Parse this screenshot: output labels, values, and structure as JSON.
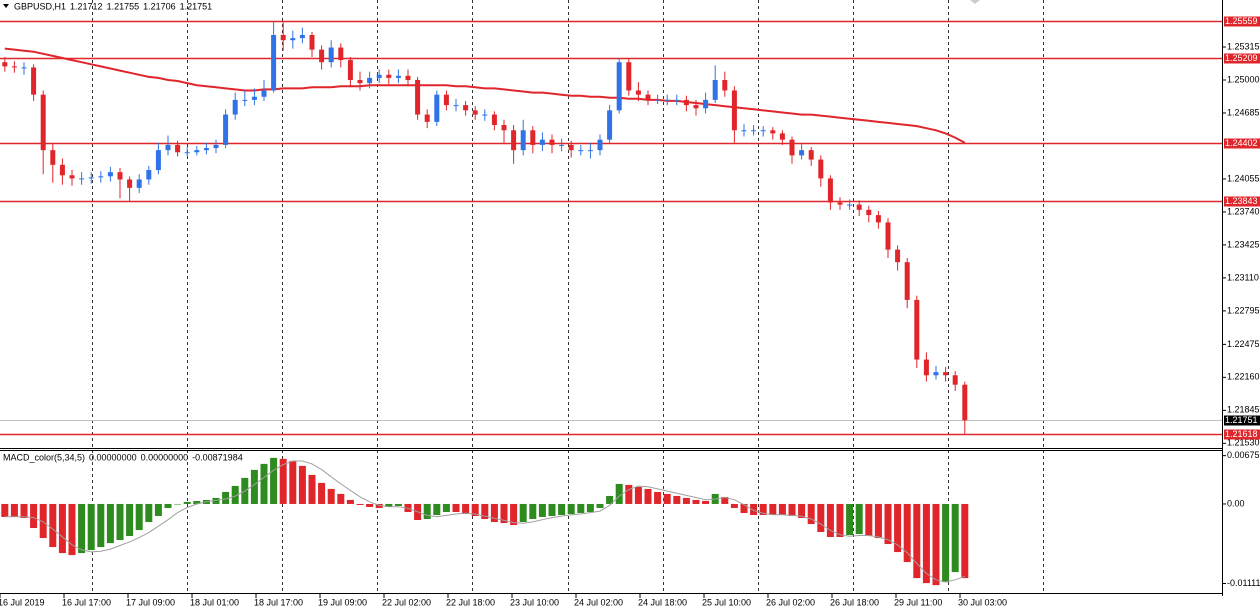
{
  "chart_data": [
    {
      "type": "candlestick",
      "title": "GBPUSD,H1",
      "last_bar": {
        "open": 1.21712,
        "high": 1.21755,
        "low": 1.21706,
        "close": 1.21751
      },
      "up_color": "#2f73e6",
      "down_color": "#e0252b",
      "open": [
        1.2517,
        1.2513,
        1.2512,
        1.2512,
        1.2486,
        1.2433,
        1.2419,
        1.2409,
        1.2406,
        1.2406,
        1.2407,
        1.2408,
        1.2412,
        1.2405,
        1.2397,
        1.2405,
        1.2414,
        1.2433,
        1.2438,
        1.2431,
        1.2431,
        1.2433,
        1.2435,
        1.2438,
        1.2467,
        1.2481,
        1.2481,
        1.2484,
        1.249,
        1.2543,
        1.2538,
        1.254,
        1.2543,
        1.2529,
        1.2517,
        1.2531,
        1.2519,
        1.25,
        1.2497,
        1.2502,
        1.2505,
        1.2502,
        1.2504,
        1.25,
        1.2467,
        1.246,
        1.2486,
        1.2476,
        1.2476,
        1.2471,
        1.2467,
        1.2467,
        1.2457,
        1.2452,
        1.2433,
        1.2452,
        1.2438,
        1.2443,
        1.2438,
        1.2438,
        1.2433,
        1.2433,
        1.2433,
        1.2443,
        1.2471,
        1.2517,
        1.249,
        1.2486,
        1.2481,
        1.2481,
        1.2481,
        1.2481,
        1.2476,
        1.2473,
        1.2481,
        1.25,
        1.249,
        1.2452,
        1.2452,
        1.2452,
        1.2452,
        1.2449,
        1.2443,
        1.2428,
        1.2433,
        1.2424,
        1.2406,
        1.2383,
        1.2381,
        1.2381,
        1.2376,
        1.2371,
        1.2364,
        1.2338,
        1.2326,
        1.229,
        1.2233,
        1.2218,
        1.2221,
        1.2218,
        1.2209
      ],
      "high": [
        1.2522,
        1.2518,
        1.2517,
        1.2515,
        1.249,
        1.244,
        1.2425,
        1.2414,
        1.2412,
        1.2412,
        1.2413,
        1.2417,
        1.2416,
        1.2408,
        1.241,
        1.2418,
        1.244,
        1.2447,
        1.2442,
        1.2436,
        1.2437,
        1.244,
        1.2443,
        1.2472,
        1.2488,
        1.249,
        1.2492,
        1.25,
        1.2556,
        1.2555,
        1.2547,
        1.255,
        1.2546,
        1.2533,
        1.2538,
        1.2535,
        1.2522,
        1.2508,
        1.2508,
        1.251,
        1.251,
        1.251,
        1.251,
        1.2503,
        1.2472,
        1.249,
        1.249,
        1.2482,
        1.248,
        1.2475,
        1.2472,
        1.247,
        1.2462,
        1.2457,
        1.2462,
        1.2456,
        1.245,
        1.2448,
        1.2444,
        1.2442,
        1.2438,
        1.244,
        1.2448,
        1.2476,
        1.2521,
        1.252,
        1.2498,
        1.249,
        1.2486,
        1.2486,
        1.2486,
        1.2485,
        1.2481,
        1.2488,
        1.2514,
        1.2508,
        1.2494,
        1.2458,
        1.2457,
        1.2456,
        1.2455,
        1.2452,
        1.2446,
        1.244,
        1.2436,
        1.2428,
        1.2409,
        1.2388,
        1.2386,
        1.2385,
        1.238,
        1.2375,
        1.2368,
        1.2342,
        1.233,
        1.2294,
        1.224,
        1.2227,
        1.2226,
        1.2222,
        1.2212
      ],
      "low": [
        1.2508,
        1.2507,
        1.2505,
        1.248,
        1.241,
        1.2402,
        1.24,
        1.2399,
        1.24,
        1.2401,
        1.2402,
        1.2403,
        1.2387,
        1.2384,
        1.2392,
        1.24,
        1.241,
        1.2428,
        1.2427,
        1.2427,
        1.2428,
        1.2429,
        1.243,
        1.2435,
        1.2462,
        1.2475,
        1.2476,
        1.248,
        1.2488,
        1.2528,
        1.253,
        1.2535,
        1.2522,
        1.251,
        1.2512,
        1.2512,
        1.2493,
        1.249,
        1.2492,
        1.2497,
        1.2496,
        1.2497,
        1.2494,
        1.2462,
        1.2454,
        1.2456,
        1.2471,
        1.247,
        1.2466,
        1.2462,
        1.2461,
        1.2452,
        1.244,
        1.242,
        1.2428,
        1.243,
        1.2432,
        1.243,
        1.2432,
        1.2426,
        1.2428,
        1.2425,
        1.2428,
        1.244,
        1.2468,
        1.2485,
        1.248,
        1.2476,
        1.2477,
        1.2476,
        1.2476,
        1.247,
        1.2466,
        1.2468,
        1.2478,
        1.2484,
        1.244,
        1.2446,
        1.2447,
        1.2446,
        1.2443,
        1.2438,
        1.242,
        1.2424,
        1.2418,
        1.2398,
        1.2376,
        1.2376,
        1.2376,
        1.237,
        1.2364,
        1.2358,
        1.233,
        1.2318,
        1.2282,
        1.2225,
        1.2212,
        1.2214,
        1.2212,
        1.2203,
        1.2162
      ],
      "close": [
        1.2513,
        1.2512,
        1.2512,
        1.2486,
        1.2433,
        1.2419,
        1.2409,
        1.2406,
        1.2406,
        1.2407,
        1.2408,
        1.2412,
        1.2405,
        1.2397,
        1.2405,
        1.2414,
        1.2433,
        1.2438,
        1.2431,
        1.2431,
        1.2433,
        1.2435,
        1.2438,
        1.2467,
        1.2481,
        1.2481,
        1.2484,
        1.249,
        1.2543,
        1.2538,
        1.254,
        1.2543,
        1.2529,
        1.2517,
        1.2531,
        1.2519,
        1.25,
        1.2497,
        1.2502,
        1.2505,
        1.2502,
        1.2504,
        1.25,
        1.2467,
        1.246,
        1.2486,
        1.2476,
        1.2476,
        1.2471,
        1.2467,
        1.2467,
        1.2457,
        1.2452,
        1.2433,
        1.2452,
        1.2438,
        1.2443,
        1.2438,
        1.2438,
        1.2433,
        1.2433,
        1.2433,
        1.2443,
        1.2471,
        1.2517,
        1.249,
        1.2486,
        1.2481,
        1.2481,
        1.2481,
        1.2481,
        1.2476,
        1.2473,
        1.2481,
        1.25,
        1.249,
        1.2452,
        1.2452,
        1.2452,
        1.2452,
        1.2449,
        1.2443,
        1.2428,
        1.2433,
        1.2424,
        1.2406,
        1.2383,
        1.2381,
        1.2381,
        1.2376,
        1.2371,
        1.2364,
        1.2338,
        1.2326,
        1.229,
        1.2233,
        1.2218,
        1.2221,
        1.2218,
        1.2209,
        1.2175
      ],
      "moving_average": {
        "color": "#e0252b",
        "values": [
          1.253,
          1.2529,
          1.2528,
          1.2527,
          1.2525,
          1.2523,
          1.2521,
          1.2519,
          1.2517,
          1.2515,
          1.2513,
          1.2511,
          1.2509,
          1.2507,
          1.2505,
          1.2503,
          1.2502,
          1.25,
          1.2499,
          1.2497,
          1.2495,
          1.2494,
          1.2493,
          1.2492,
          1.2491,
          1.249,
          1.249,
          1.2491,
          1.2491,
          1.2492,
          1.2492,
          1.2492,
          1.2493,
          1.2493,
          1.2493,
          1.2494,
          1.2494,
          1.2494,
          1.2495,
          1.2495,
          1.2495,
          1.2495,
          1.2495,
          1.2495,
          1.2495,
          1.2495,
          1.2495,
          1.2494,
          1.2494,
          1.2493,
          1.2492,
          1.2492,
          1.2491,
          1.249,
          1.2489,
          1.2488,
          1.2488,
          1.2487,
          1.2486,
          1.2485,
          1.2485,
          1.2484,
          1.2484,
          1.2483,
          1.2483,
          1.2482,
          1.2482,
          1.2481,
          1.2481,
          1.248,
          1.248,
          1.2479,
          1.2478,
          1.2477,
          1.2476,
          1.2475,
          1.2474,
          1.2473,
          1.2472,
          1.2471,
          1.247,
          1.2469,
          1.2468,
          1.2467,
          1.2467,
          1.2466,
          1.2465,
          1.2464,
          1.2463,
          1.2462,
          1.2461,
          1.246,
          1.2459,
          1.2458,
          1.2457,
          1.2456,
          1.2454,
          1.2452,
          1.2449,
          1.2445,
          1.244
        ]
      },
      "levels": [
        1.25559,
        1.25209,
        1.24402,
        1.23843,
        1.21618
      ],
      "level_color": "#e0252b",
      "ylim": [
        1.21495,
        1.25764
      ],
      "yticks": [
        1.25315,
        {
          "value": 1.25,
          "label": "1.25000"
        },
        1.24685,
        1.24055,
        {
          "value": 1.2374,
          "label": "1.23740"
        },
        1.23425,
        {
          "value": 1.2311,
          "label": "1.23110"
        },
        1.22795,
        1.22475,
        {
          "value": 1.2216,
          "label": "1.22160"
        },
        1.21845,
        {
          "value": 1.2153,
          "label": "1.21530"
        }
      ],
      "xtick_labels": [
        "16 Jul 2019",
        "16 Jul 17:00",
        "17 Jul 09:00",
        "18 Jul 01:00",
        "18 Jul 17:00",
        "19 Jul 09:00",
        "22 Jul 02:00",
        "22 Jul 18:00",
        "23 Jul 10:00",
        "24 Jul 02:00",
        "24 Jul 18:00",
        "25 Jul 10:00",
        "26 Jul 02:00",
        "26 Jul 18:00",
        "29 Jul 11:00",
        "30 Jul 03:00"
      ]
    },
    {
      "type": "bar",
      "title": "MACD_color(5,34,5)",
      "indicator_values": [
        {
          "value": 0,
          "label": "0.00000000"
        },
        {
          "value": 0,
          "label": "0.00000000"
        },
        {
          "value": -0.00871984,
          "label": "-0.00871984"
        }
      ],
      "up_color": "#2e8b1f",
      "down_color": "#e0252b",
      "values": [
        -0.00182,
        -0.00182,
        -0.00196,
        -0.00336,
        -0.00476,
        -0.00602,
        -0.00686,
        -0.00714,
        -0.00686,
        -0.00644,
        -0.00602,
        -0.00546,
        -0.00504,
        -0.00448,
        -0.00364,
        -0.00252,
        -0.00168,
        -0.00056,
        0,
        0.00028,
        0.00042,
        0.00056,
        0.00084,
        0.00168,
        0.00252,
        0.00364,
        0.00476,
        0.0056,
        0.00644,
        0.0063,
        0.00602,
        0.00532,
        0.00406,
        0.00294,
        0.0021,
        0.0014,
        0.00056,
        -0.00014,
        -0.00042,
        -0.00056,
        -0.00042,
        -0.00028,
        -0.00112,
        -0.00224,
        -0.0021,
        -0.00154,
        -0.00112,
        -0.00112,
        -0.0014,
        -0.00168,
        -0.0021,
        -0.00252,
        -0.00266,
        -0.00294,
        -0.00252,
        -0.0021,
        -0.00182,
        -0.00168,
        -0.00154,
        -0.0014,
        -0.00126,
        -0.00112,
        -0.00056,
        0.00112,
        0.0028,
        0.00266,
        0.00238,
        0.0021,
        0.00168,
        0.0014,
        0.00112,
        0.00084,
        0.00056,
        0.00042,
        0.0014,
        0.00098,
        -0.00056,
        -0.00126,
        -0.00154,
        -0.00154,
        -0.00154,
        -0.00154,
        -0.00168,
        -0.00196,
        -0.0028,
        -0.00392,
        -0.00462,
        -0.00462,
        -0.00434,
        -0.0042,
        -0.00448,
        -0.00476,
        -0.0056,
        -0.00672,
        -0.00812,
        -0.01036,
        -0.01106,
        -0.01134,
        -0.01092,
        -0.00952,
        -0.01036
      ],
      "signal": {
        "color": "#a0a0a0",
        "values": [
          -0.0018,
          -0.0018,
          -0.0018,
          -0.0019,
          -0.0025,
          -0.0035,
          -0.0046,
          -0.0057,
          -0.0064,
          -0.0067,
          -0.0066,
          -0.0063,
          -0.0058,
          -0.0053,
          -0.0047,
          -0.004,
          -0.0031,
          -0.0022,
          -0.0012,
          -0.0005,
          0,
          0.0003,
          0.0005,
          0.0007,
          0.0011,
          0.0018,
          0.0027,
          0.0037,
          0.0047,
          0.0055,
          0.006,
          0.006,
          0.0056,
          0.0048,
          0.0038,
          0.0028,
          0.0019,
          0.001,
          0.0003,
          -0.0002,
          -0.0004,
          -0.0004,
          -0.0006,
          -0.0011,
          -0.0016,
          -0.0018,
          -0.0016,
          -0.0014,
          -0.0013,
          -0.0014,
          -0.0017,
          -0.002,
          -0.0023,
          -0.0026,
          -0.0027,
          -0.0025,
          -0.0022,
          -0.0019,
          -0.0017,
          -0.0015,
          -0.0014,
          -0.0012,
          -0.001,
          -0.0002,
          0.0011,
          0.002,
          0.0025,
          0.0024,
          0.0021,
          0.0018,
          0.0015,
          0.0012,
          0.0009,
          0.0006,
          0.0007,
          0.0009,
          0.0006,
          -0.0001,
          -0.0009,
          -0.0013,
          -0.0015,
          -0.0015,
          -0.0016,
          -0.0017,
          -0.0021,
          -0.0028,
          -0.0037,
          -0.0043,
          -0.0045,
          -0.0044,
          -0.0044,
          -0.0046,
          -0.005,
          -0.0057,
          -0.0068,
          -0.0083,
          -0.0097,
          -0.0106,
          -0.0109,
          -0.0106,
          -0.0101
        ]
      },
      "ylim": [
        -0.0123,
        0.0074
      ],
      "yticks": [
        0.00675,
        {
          "value": 0,
          "label": "0.00"
        },
        -0.01111
      ]
    }
  ]
}
